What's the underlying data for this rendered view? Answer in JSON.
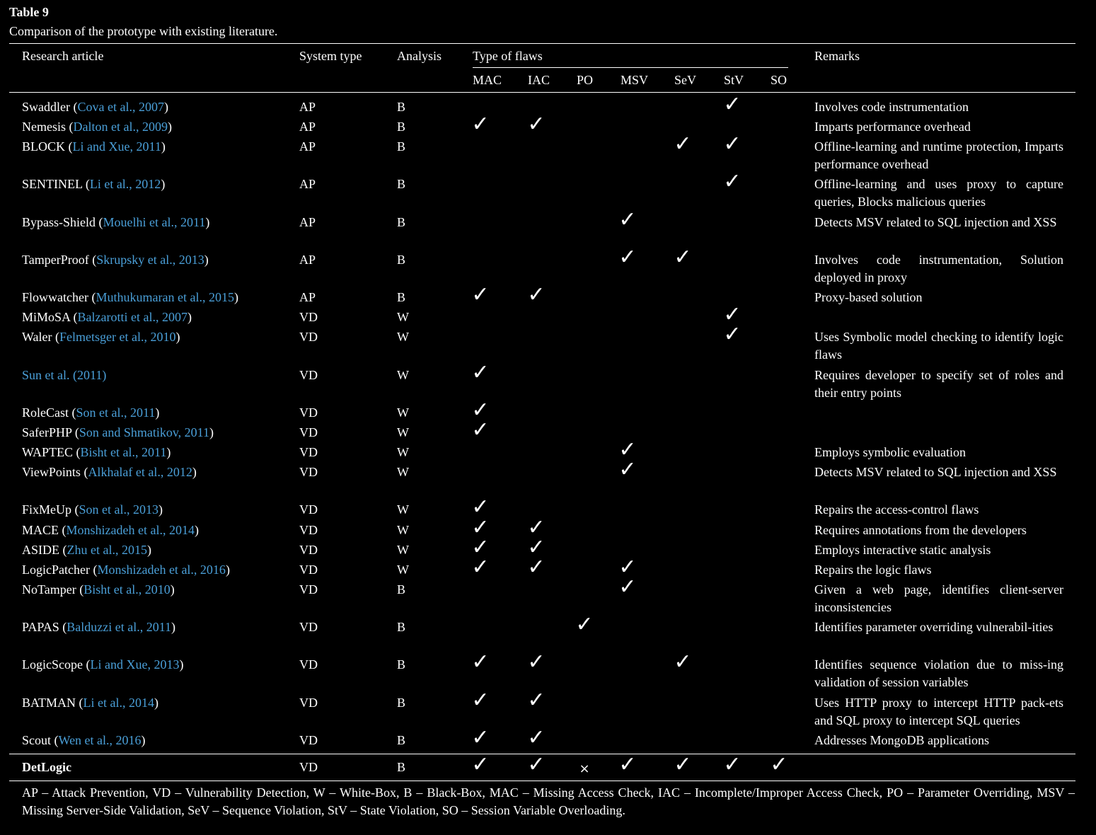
{
  "table_label": "Table 9",
  "caption": "Comparison of the prototype with existing literature.",
  "headers": {
    "research_article": "Research article",
    "system_type": "System type",
    "analysis": "Analysis",
    "type_of_flaws": "Type of flaws",
    "remarks": "Remarks",
    "flaws": [
      "MAC",
      "IAC",
      "PO",
      "MSV",
      "SeV",
      "StV",
      "SO"
    ]
  },
  "check_symbol": "✓",
  "cross_symbol": "×",
  "rows": [
    {
      "name": "Swaddler",
      "cite": "Cova et al., 2007",
      "system": "AP",
      "analysis": "B",
      "flags": [
        0,
        0,
        0,
        0,
        0,
        1,
        0
      ],
      "remarks": "Involves code instrumentation"
    },
    {
      "name": "Nemesis",
      "cite": "Dalton et al., 2009",
      "system": "AP",
      "analysis": "B",
      "flags": [
        1,
        1,
        0,
        0,
        0,
        0,
        0
      ],
      "remarks": "Imparts performance overhead"
    },
    {
      "name": "BLOCK",
      "cite": "Li and Xue, 2011",
      "system": "AP",
      "analysis": "B",
      "flags": [
        0,
        0,
        0,
        0,
        1,
        1,
        0
      ],
      "remarks": "Offline-learning and runtime protection, Imparts performance overhead"
    },
    {
      "name": "SENTINEL",
      "cite": "Li et al., 2012",
      "system": "AP",
      "analysis": "B",
      "flags": [
        0,
        0,
        0,
        0,
        0,
        1,
        0
      ],
      "remarks": "Offline-learning and uses proxy to capture queries, Blocks malicious queries"
    },
    {
      "name": "Bypass-Shield",
      "cite": "Mouelhi et al., 2011",
      "system": "AP",
      "analysis": "B",
      "flags": [
        0,
        0,
        0,
        1,
        0,
        0,
        0
      ],
      "remarks": "Detects MSV related to SQL injection and XSS"
    },
    {
      "name": "TamperProof",
      "cite": "Skrupsky et al., 2013",
      "system": "AP",
      "analysis": "B",
      "flags": [
        0,
        0,
        0,
        1,
        1,
        0,
        0
      ],
      "remarks": "Involves code instrumentation, Solution deployed in proxy"
    },
    {
      "name": "Flowwatcher",
      "cite": "Muthukumaran et al., 2015",
      "system": "AP",
      "analysis": "B",
      "flags": [
        1,
        1,
        0,
        0,
        0,
        0,
        0
      ],
      "remarks": "Proxy-based solution"
    },
    {
      "name": "MiMoSA",
      "cite": "Balzarotti et al., 2007",
      "system": "VD",
      "analysis": "W",
      "flags": [
        0,
        0,
        0,
        0,
        0,
        1,
        0
      ],
      "remarks": ""
    },
    {
      "name": "Waler",
      "cite": "Felmetsger et al., 2010",
      "system": "VD",
      "analysis": "W",
      "flags": [
        0,
        0,
        0,
        0,
        0,
        1,
        0
      ],
      "remarks": "Uses Symbolic model checking to identify logic flaws"
    },
    {
      "name": "",
      "cite": "Sun et al. (2011)",
      "system": "VD",
      "analysis": "W",
      "flags": [
        1,
        0,
        0,
        0,
        0,
        0,
        0
      ],
      "remarks": "Requires developer to specify set of roles and their entry points"
    },
    {
      "name": "RoleCast",
      "cite": "Son et al., 2011",
      "system": "VD",
      "analysis": "W",
      "flags": [
        1,
        0,
        0,
        0,
        0,
        0,
        0
      ],
      "remarks": ""
    },
    {
      "name": "SaferPHP",
      "cite": "Son and Shmatikov, 2011",
      "system": "VD",
      "analysis": "W",
      "flags": [
        1,
        0,
        0,
        0,
        0,
        0,
        0
      ],
      "remarks": ""
    },
    {
      "name": "WAPTEC",
      "cite": "Bisht et al., 2011",
      "system": "VD",
      "analysis": "W",
      "flags": [
        0,
        0,
        0,
        1,
        0,
        0,
        0
      ],
      "remarks": "Employs symbolic evaluation"
    },
    {
      "name": "ViewPoints",
      "cite": "Alkhalaf et al., 2012",
      "system": "VD",
      "analysis": "W",
      "flags": [
        0,
        0,
        0,
        1,
        0,
        0,
        0
      ],
      "remarks": "Detects MSV related to SQL injection and XSS"
    },
    {
      "name": "FixMeUp",
      "cite": "Son et al., 2013",
      "system": "VD",
      "analysis": "W",
      "flags": [
        1,
        0,
        0,
        0,
        0,
        0,
        0
      ],
      "remarks": "Repairs the access-control flaws"
    },
    {
      "name": "MACE",
      "cite": "Monshizadeh et al., 2014",
      "system": "VD",
      "analysis": "W",
      "flags": [
        1,
        1,
        0,
        0,
        0,
        0,
        0
      ],
      "remarks": "Requires annotations from the developers"
    },
    {
      "name": "ASIDE",
      "cite": "Zhu et al., 2015",
      "system": "VD",
      "analysis": "W",
      "flags": [
        1,
        1,
        0,
        0,
        0,
        0,
        0
      ],
      "remarks": "Employs interactive static analysis"
    },
    {
      "name": "LogicPatcher",
      "cite": "Monshizadeh et al., 2016",
      "system": "VD",
      "analysis": "W",
      "flags": [
        1,
        1,
        0,
        1,
        0,
        0,
        0
      ],
      "remarks": "Repairs the logic flaws"
    },
    {
      "name": "NoTamper",
      "cite": "Bisht et al., 2010",
      "system": "VD",
      "analysis": "B",
      "flags": [
        0,
        0,
        0,
        1,
        0,
        0,
        0
      ],
      "remarks": "Given a web page, identifies client-server inconsistencies"
    },
    {
      "name": "PAPAS",
      "cite": "Balduzzi et al., 2011",
      "system": "VD",
      "analysis": "B",
      "flags": [
        0,
        0,
        1,
        0,
        0,
        0,
        0
      ],
      "remarks": "Identifies parameter overriding vulnerabil-ities"
    },
    {
      "name": "LogicScope",
      "cite": "Li and Xue, 2013",
      "system": "VD",
      "analysis": "B",
      "flags": [
        1,
        1,
        0,
        0,
        1,
        0,
        0
      ],
      "remarks": "Identifies sequence violation due to miss-ing validation of session variables"
    },
    {
      "name": "BATMAN",
      "cite": "Li et al., 2014",
      "system": "VD",
      "analysis": "B",
      "flags": [
        1,
        1,
        0,
        0,
        0,
        0,
        0
      ],
      "remarks": "Uses HTTP proxy to intercept HTTP pack-ets and SQL proxy to intercept SQL queries"
    },
    {
      "name": "Scout",
      "cite": "Wen et al., 2016",
      "system": "VD",
      "analysis": "B",
      "flags": [
        1,
        1,
        0,
        0,
        0,
        0,
        0
      ],
      "remarks": "Addresses MongoDB applications"
    }
  ],
  "detlogic": {
    "name": "DetLogic",
    "system": "VD",
    "analysis": "B",
    "flags": [
      1,
      1,
      2,
      1,
      1,
      1,
      1
    ]
  },
  "footnote": "AP – Attack Prevention, VD – Vulnerability Detection, W – White-Box, B – Black-Box, MAC – Missing Access Check, IAC – Incomplete/Improper Access Check, PO – Parameter Overriding, MSV – Missing Server-Side Validation, SeV – Sequence Violation, StV – State Violation, SO – Session Variable Overloading."
}
